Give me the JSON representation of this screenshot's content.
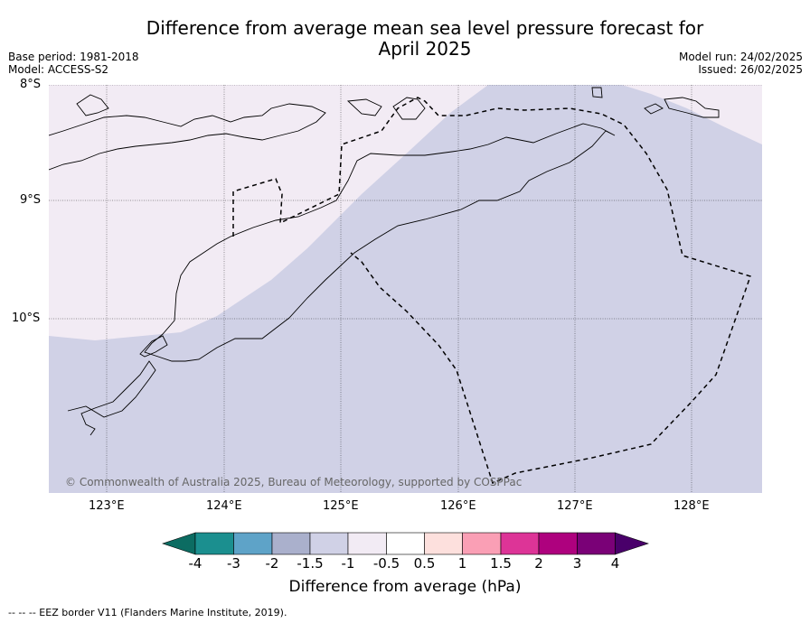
{
  "title_line1": "Difference from average mean sea level pressure forecast for",
  "title_line2": "April 2025",
  "base_period": "Base period: 1981-2018",
  "model": "Model: ACCESS-S2",
  "model_run": "Model run: 24/02/2025",
  "issued": "Issued: 26/02/2025",
  "lat_labels": [
    "8°S",
    "9°S",
    "10°S"
  ],
  "lon_labels": [
    "123°E",
    "124°E",
    "125°E",
    "126°E",
    "127°E",
    "128°E"
  ],
  "copyright": "© Commonwealth of Australia 2025, Bureau of Meteorology, supported by COSPPac",
  "colorbar": {
    "title": "Difference from average (hPa)",
    "tick_labels": [
      "-4",
      "-3",
      "-2",
      "-1.5",
      "-1",
      "-0.5",
      "0.5",
      "1",
      "1.5",
      "2",
      "3",
      "4"
    ],
    "colors": [
      "#1b8f8f",
      "#5ea3c8",
      "#aab0cc",
      "#d0d1e6",
      "#f2ebf4",
      "#ffffff",
      "#fde0dd",
      "#fa9fb5",
      "#dd3497",
      "#ae017e",
      "#7a0177"
    ],
    "low_extend_color": "#0c6c62",
    "high_extend_color": "#49006a"
  },
  "legend_regions": {
    "light_region_color": "#f2ebf4",
    "main_region_color": "#d0d1e6"
  },
  "footnote": "--  --  -- EEZ border V11 (Flanders Marine Institute, 2019)."
}
